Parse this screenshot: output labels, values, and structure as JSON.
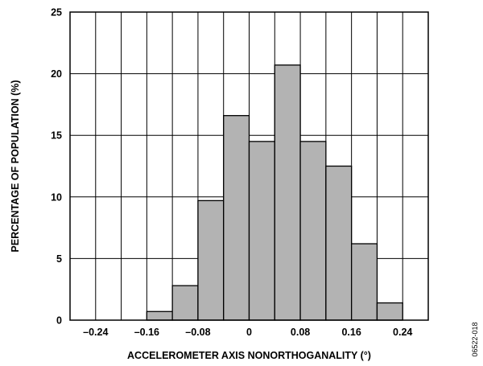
{
  "chart_data": {
    "type": "bar",
    "title": "",
    "xlabel": "ACCELEROMETER AXIS NONORTHOGANALITY (°)",
    "ylabel": "PERCENTAGE OF POPULATION (%)",
    "xlim": [
      -0.28,
      0.28
    ],
    "ylim": [
      0,
      25
    ],
    "x_ticks": [
      "–0.24",
      "–0.16",
      "–0.08",
      "0",
      "0.08",
      "0.16",
      "0.24"
    ],
    "x_tick_values": [
      -0.24,
      -0.16,
      -0.08,
      0,
      0.08,
      0.16,
      0.24
    ],
    "y_ticks": [
      "0",
      "5",
      "10",
      "15",
      "20",
      "25"
    ],
    "y_tick_values": [
      0,
      5,
      10,
      15,
      20,
      25
    ],
    "grid": true,
    "bar_color": "#b3b3b3",
    "bar_edge_color": "#000000",
    "bins": [
      {
        "x0": -0.16,
        "x1": -0.12,
        "value": 0.7
      },
      {
        "x0": -0.12,
        "x1": -0.08,
        "value": 2.8
      },
      {
        "x0": -0.08,
        "x1": -0.04,
        "value": 9.7
      },
      {
        "x0": -0.04,
        "x1": 0.0,
        "value": 16.6
      },
      {
        "x0": 0.0,
        "x1": 0.04,
        "value": 14.5
      },
      {
        "x0": 0.04,
        "x1": 0.08,
        "value": 20.7
      },
      {
        "x0": 0.08,
        "x1": 0.12,
        "value": 14.5
      },
      {
        "x0": 0.12,
        "x1": 0.16,
        "value": 12.5
      },
      {
        "x0": 0.16,
        "x1": 0.2,
        "value": 6.2
      },
      {
        "x0": 0.2,
        "x1": 0.24,
        "value": 1.4
      }
    ]
  },
  "figure_id": "06522-018"
}
